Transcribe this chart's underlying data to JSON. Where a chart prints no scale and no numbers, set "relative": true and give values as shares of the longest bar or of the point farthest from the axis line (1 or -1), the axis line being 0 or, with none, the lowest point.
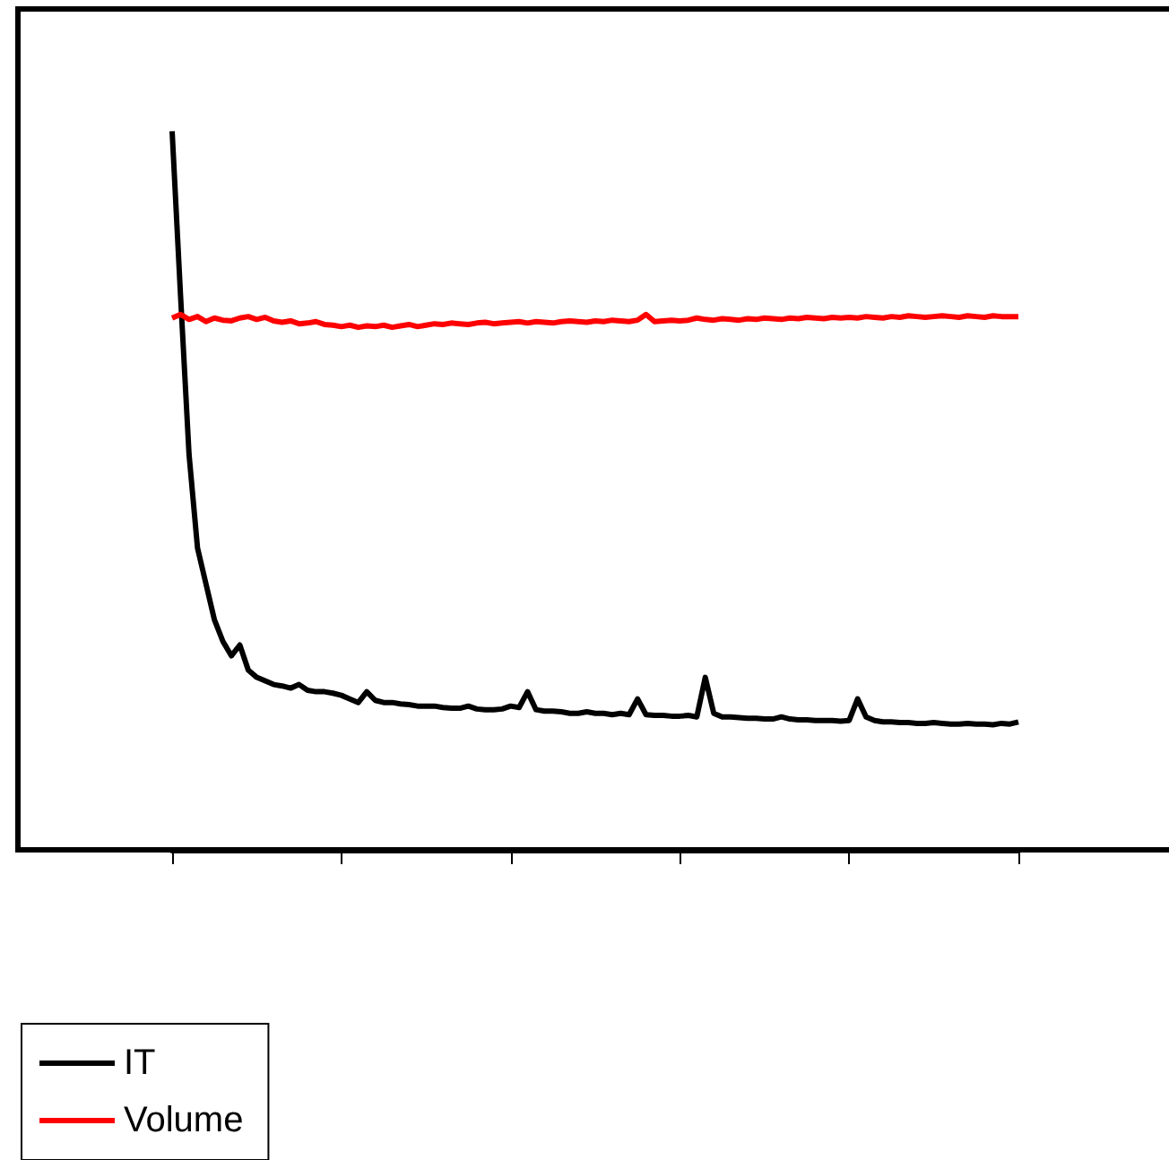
{
  "chart_data": {
    "type": "line",
    "relative": true,
    "legend": "bottom left",
    "categories": [
      null,
      null,
      null,
      null,
      null,
      null,
      null,
      null,
      null,
      null,
      null,
      null,
      null,
      null,
      null,
      null,
      null,
      null,
      null,
      null,
      null,
      null,
      null,
      null,
      null,
      null,
      null,
      null,
      null,
      null,
      null,
      null,
      null,
      null,
      null,
      null,
      null,
      null,
      null,
      null,
      null,
      null,
      null,
      null,
      null,
      null,
      null,
      null,
      null,
      null,
      null,
      null,
      null,
      null,
      null,
      null,
      null,
      null,
      null,
      null,
      null,
      null,
      null,
      null,
      null,
      null,
      null,
      null,
      null,
      null,
      null,
      null,
      null,
      null,
      null,
      null,
      null,
      null,
      null,
      null,
      null,
      null,
      null,
      null,
      null,
      null,
      null,
      null,
      null,
      null,
      null,
      null,
      null,
      null,
      null,
      null,
      null,
      null,
      null,
      null,
      null
    ],
    "series": [
      {
        "name": "IT",
        "color": "#000000",
        "values": [
          1.0,
          0.77,
          0.55,
          0.42,
          0.37,
          0.32,
          0.29,
          0.27,
          0.285,
          0.25,
          0.24,
          0.235,
          0.23,
          0.228,
          0.225,
          0.23,
          0.222,
          0.22,
          0.22,
          0.218,
          0.215,
          0.21,
          0.205,
          0.22,
          0.208,
          0.205,
          0.205,
          0.203,
          0.202,
          0.2,
          0.2,
          0.2,
          0.198,
          0.197,
          0.197,
          0.2,
          0.196,
          0.195,
          0.195,
          0.196,
          0.2,
          0.198,
          0.22,
          0.195,
          0.193,
          0.193,
          0.192,
          0.19,
          0.19,
          0.192,
          0.19,
          0.19,
          0.188,
          0.19,
          0.188,
          0.21,
          0.188,
          0.187,
          0.187,
          0.186,
          0.186,
          0.187,
          0.185,
          0.24,
          0.19,
          0.185,
          0.185,
          0.184,
          0.183,
          0.183,
          0.182,
          0.182,
          0.185,
          0.182,
          0.181,
          0.181,
          0.18,
          0.18,
          0.18,
          0.179,
          0.18,
          0.21,
          0.185,
          0.18,
          0.178,
          0.178,
          0.177,
          0.177,
          0.176,
          0.176,
          0.177,
          0.176,
          0.175,
          0.175,
          0.176,
          0.175,
          0.175,
          0.174,
          0.176,
          0.175,
          0.178
        ]
      },
      {
        "name": "Volume",
        "color": "#ff0000",
        "values": [
          0.74,
          0.745,
          0.738,
          0.742,
          0.735,
          0.74,
          0.737,
          0.736,
          0.74,
          0.742,
          0.738,
          0.741,
          0.736,
          0.734,
          0.736,
          0.732,
          0.733,
          0.735,
          0.731,
          0.73,
          0.728,
          0.73,
          0.727,
          0.729,
          0.728,
          0.73,
          0.727,
          0.729,
          0.731,
          0.728,
          0.73,
          0.732,
          0.731,
          0.733,
          0.732,
          0.731,
          0.733,
          0.734,
          0.732,
          0.733,
          0.734,
          0.735,
          0.733,
          0.735,
          0.734,
          0.733,
          0.735,
          0.736,
          0.735,
          0.734,
          0.736,
          0.735,
          0.737,
          0.736,
          0.735,
          0.737,
          0.745,
          0.735,
          0.736,
          0.737,
          0.736,
          0.737,
          0.74,
          0.738,
          0.737,
          0.739,
          0.738,
          0.737,
          0.739,
          0.738,
          0.74,
          0.739,
          0.738,
          0.74,
          0.739,
          0.741,
          0.74,
          0.739,
          0.741,
          0.74,
          0.741,
          0.74,
          0.742,
          0.741,
          0.74,
          0.742,
          0.741,
          0.743,
          0.742,
          0.741,
          0.742,
          0.743,
          0.742,
          0.741,
          0.743,
          0.742,
          0.741,
          0.743,
          0.742,
          0.742,
          0.742
        ]
      }
    ]
  }
}
